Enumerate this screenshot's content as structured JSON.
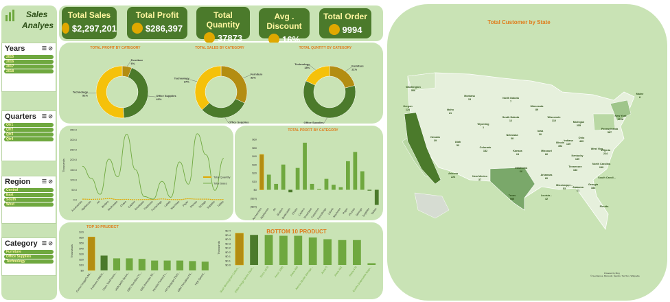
{
  "header": {
    "title_line1": "Sales",
    "title_line2": "Analyes"
  },
  "kpis": [
    {
      "title": "Total Sales",
      "value": "$2,297,201",
      "icon": "money-bag-icon"
    },
    {
      "title": "Total Profit",
      "value": "$286,397",
      "icon": "coins-growth-icon"
    },
    {
      "title": "Total Quantity",
      "value": "37873",
      "icon": "boxes-icon"
    },
    {
      "title": "Avg . Discount",
      "value": "16%",
      "icon": "discount-tag-icon"
    },
    {
      "title": "Total Order",
      "value": "9994",
      "icon": "order-clipboard-icon"
    }
  ],
  "slicers": {
    "years": {
      "title": "Years",
      "items": [
        "2015",
        "2016",
        "2017",
        "2018"
      ]
    },
    "quarters": {
      "title": "Quarters",
      "items": [
        "Qtr1",
        "Qtr2",
        "Qtr3",
        "Qtr4"
      ]
    },
    "region": {
      "title": "Region",
      "items": [
        "Central",
        "East",
        "South",
        "West"
      ]
    },
    "category": {
      "title": "Category",
      "items": [
        "Furniture",
        "Office Supplies",
        "Technology"
      ]
    }
  },
  "donuts": [
    {
      "title": "TOTAL PROFIT BY CATEGORY",
      "slices": [
        {
          "label": "Furniture",
          "value": 6,
          "text": "Furniture\n6%",
          "color": "#b38d12"
        },
        {
          "label": "Office Supplies",
          "value": 43,
          "text": "Office Supplies\n43%",
          "color": "#4b7a2b"
        },
        {
          "label": "Technology",
          "value": 51,
          "text": "Technology\n51%",
          "color": "#f5c10a"
        }
      ]
    },
    {
      "title": "TOTAL SALES BY CATEGORY",
      "slices": [
        {
          "label": "Furniture",
          "value": 32,
          "text": "Furniture\n32%",
          "color": "#b38d12"
        },
        {
          "label": "Office Supplies",
          "value": 31,
          "text": "Office Supplies\n31%",
          "color": "#4b7a2b"
        },
        {
          "label": "Technology",
          "value": 37,
          "text": "Technology\n37%",
          "color": "#f5c10a"
        }
      ]
    },
    {
      "title": "TOTAL QUNTITY BY CATEGORY",
      "slices": [
        {
          "label": "Furniture",
          "value": 21,
          "text": "Furniture\n21%",
          "color": "#b38d12"
        },
        {
          "label": "Office Supplies",
          "value": 61,
          "text": "Office Supplies\n61%",
          "color": "#4b7a2b"
        },
        {
          "label": "Technology",
          "value": 18,
          "text": "Technology\n18%",
          "color": "#f5c10a"
        }
      ]
    }
  ],
  "chart_data": [
    {
      "type": "line",
      "title": "",
      "ylabel": "Thousands",
      "y_ticks": [
        "350.0",
        "300.0",
        "250.0",
        "200.0",
        "150.0",
        "100.0",
        "50.0",
        "0.0"
      ],
      "ylim": [
        0,
        350
      ],
      "categories": [
        "Accessories",
        "Appliances",
        "Art",
        "Binders",
        "Bookcases",
        "Chairs",
        "Copiers",
        "Envelopes",
        "Fasteners",
        "Furnishings",
        "Labels",
        "Machines",
        "Paper",
        "Phones",
        "Storage",
        "Supplies",
        "Tables"
      ],
      "series": [
        {
          "name": "Total Quantity",
          "values": [
            3,
            2,
            3,
            6,
            1,
            2,
            0.2,
            1,
            1,
            4,
            1,
            0.4,
            5,
            3,
            3,
            0.6,
            1
          ],
          "color": "#e0a800"
        },
        {
          "name": "Total Sales",
          "values": [
            167,
            107,
            27,
            203,
            115,
            328,
            150,
            16,
            3,
            92,
            12,
            189,
            78,
            330,
            224,
            47,
            207
          ],
          "color": "#6fa83f"
        }
      ]
    },
    {
      "type": "bar",
      "title": "TOTAL PROFIT BY CATEGORY",
      "y_ticks": [
        "$60",
        "$50",
        "$40",
        "$30",
        "$20",
        "$10",
        "$0",
        "($10)",
        "($20)"
      ],
      "ylim": [
        -20,
        60
      ],
      "categories": [
        "Accessories",
        "Appliances",
        "Art",
        "Binders",
        "Bookcases",
        "Chairs",
        "Copiers",
        "Envelopes",
        "Fasteners",
        "Furnishings",
        "Labels",
        "Machines",
        "Paper",
        "Phones",
        "Storage",
        "Supplies",
        "Tables"
      ],
      "values": [
        42,
        18,
        7,
        30,
        -3,
        26,
        56,
        7,
        1,
        13,
        6,
        3,
        34,
        45,
        22,
        -1,
        -18
      ],
      "highlight_index": 0
    },
    {
      "type": "bar",
      "title": "TOP 10 PRUDECT",
      "ylabel": "Thousands",
      "y_ticks": [
        "$70",
        "$60",
        "$50",
        "$40",
        "$30",
        "$20",
        "$10",
        "$0"
      ],
      "ylim": [
        0,
        70
      ],
      "categories": [
        "Canon imageCLAS...",
        "Fellowes PB500...",
        "Cisco TelePresen...",
        "HON 5400 Series...",
        "GBC DocuBind TL...",
        "GBC Ibimaster 50...",
        "Hewlett Packard L...",
        "HP Designjet T520...",
        "GBC DocuBind P4...",
        "High Speed..."
      ],
      "values": [
        61,
        27,
        22,
        22,
        21,
        18,
        18,
        18,
        17,
        16
      ],
      "highlight_index": 0
    },
    {
      "type": "bar",
      "title": "BOTTOM 10 PRODUCT",
      "ylabel": "Thousands",
      "y_ticks": [
        "$0.4",
        "$0.4",
        "$0.3",
        "$0.3",
        "$0.2",
        "$0.2",
        "$0.1",
        "$0.1",
        "$0.0"
      ],
      "ylim": [
        0,
        0.4
      ],
      "categories": [
        "Bush Birmingham Collect...",
        "Eldon Image Series Desk...",
        "Xerox 1979",
        "Xerox 1986",
        "Avery 498",
        "Aventa Studio Storage...",
        "Avery 5",
        "Avery 482",
        "Avery 475",
        "Eureka Disposable Bags..."
      ],
      "values": [
        0.37,
        0.35,
        0.35,
        0.34,
        0.34,
        0.32,
        0.3,
        0.29,
        0.29,
        0.02
      ],
      "highlight_index": 0
    }
  ],
  "map": {
    "title": "Total Customer by State",
    "states": [
      {
        "name": "Washington",
        "value": "506"
      },
      {
        "name": "Oregon",
        "value": "124"
      },
      {
        "name": "Idaho",
        "value": "21"
      },
      {
        "name": "Montana",
        "value": "15"
      },
      {
        "name": "Wyoming",
        "value": "1"
      },
      {
        "name": "Nevada",
        "value": "39"
      },
      {
        "name": "Utah",
        "value": "53"
      },
      {
        "name": "Colorado",
        "value": "182"
      },
      {
        "name": "Arizona",
        "value": "224"
      },
      {
        "name": "New Mexico",
        "value": "37"
      },
      {
        "name": "North Dakota",
        "value": "7"
      },
      {
        "name": "South Dakota",
        "value": "12"
      },
      {
        "name": "Nebraska",
        "value": "38"
      },
      {
        "name": "Kansas",
        "value": "24"
      },
      {
        "name": "Oklahoma",
        "value": "66"
      },
      {
        "name": "Texas",
        "value": "985"
      },
      {
        "name": "Minnesota",
        "value": "89"
      },
      {
        "name": "Iowa",
        "value": "30"
      },
      {
        "name": "Missouri",
        "value": "66"
      },
      {
        "name": "Arkansas",
        "value": "60"
      },
      {
        "name": "Louisia...",
        "value": "42"
      },
      {
        "name": "Wisconsin",
        "value": "110"
      },
      {
        "name": "Illinois",
        "value": "492"
      },
      {
        "name": "Michigan",
        "value": "255"
      },
      {
        "name": "Indiana",
        "value": "149"
      },
      {
        "name": "Ohio",
        "value": "469"
      },
      {
        "name": "Kentucky",
        "value": "139"
      },
      {
        "name": "Tennessee",
        "value": "183"
      },
      {
        "name": "Mississippi...",
        "value": "53"
      },
      {
        "name": "Alabama",
        "value": "61"
      },
      {
        "name": "Georgia",
        "value": "184"
      },
      {
        "name": "Florida",
        "value": ""
      },
      {
        "name": "South Caroli...",
        "value": ""
      },
      {
        "name": "North Carolina",
        "value": "249"
      },
      {
        "name": "Virginia",
        "value": "224"
      },
      {
        "name": "West Virg...",
        "value": ""
      },
      {
        "name": "Pennsylvania",
        "value": "587"
      },
      {
        "name": "New York",
        "value": "1128"
      },
      {
        "name": "Maine",
        "value": "8"
      }
    ],
    "footer_line1": "Powered by Bing",
    "footer_line2": "© GeoNames, Microsoft, Navinfo, TomTom, Wikipedia"
  }
}
